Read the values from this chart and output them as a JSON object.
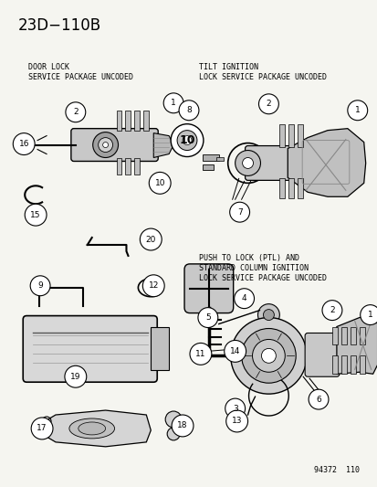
{
  "title": "23D−110B",
  "bg_color": "#f5f5f0",
  "text_color": "#1a1a1a",
  "footer": "94372  110",
  "figsize": [
    4.14,
    5.33
  ],
  "dpi": 100,
  "section_labels": {
    "door_lock": [
      "DOOR LOCK",
      "SERVICE PACKAGE UNCODED"
    ],
    "tilt_ignition": [
      "TILT IGNITION",
      "LOCK SERVICE PACKAGE UNCODED"
    ],
    "push_to_lock": [
      "PUSH TO LOCK (PTL) AND",
      "STANDARD COLUMN IGNITION",
      "LOCK SERVICE PACKAGE UNCODED"
    ]
  },
  "callout_r": 0.018,
  "callout_font": 5.5
}
